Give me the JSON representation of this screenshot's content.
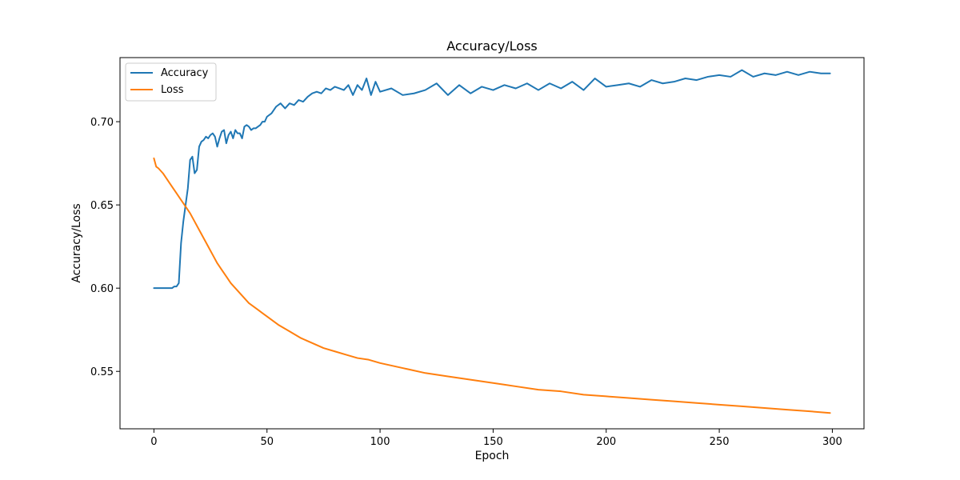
{
  "chart_data": {
    "type": "line",
    "title": "Accuracy/Loss",
    "xlabel": "Epoch",
    "ylabel": "Accuracy/Loss",
    "xlim": [
      -15,
      314
    ],
    "ylim": [
      0.5155,
      0.7385
    ],
    "xticks": [
      0,
      50,
      100,
      150,
      200,
      250,
      300
    ],
    "yticks": [
      0.55,
      0.6,
      0.65,
      0.7
    ],
    "ytick_labels": [
      "0.55",
      "0.60",
      "0.65",
      "0.70"
    ],
    "grid": false,
    "legend_position": "upper-left",
    "series": [
      {
        "name": "Accuracy",
        "color": "#1f77b4",
        "x": [
          0,
          2,
          4,
          6,
          8,
          9,
          10,
          11,
          12,
          13,
          14,
          15,
          16,
          17,
          18,
          19,
          20,
          21,
          22,
          23,
          24,
          25,
          26,
          27,
          28,
          29,
          30,
          31,
          32,
          33,
          34,
          35,
          36,
          37,
          38,
          39,
          40,
          41,
          42,
          43,
          44,
          45,
          46,
          47,
          48,
          49,
          50,
          52,
          54,
          56,
          58,
          60,
          62,
          64,
          66,
          68,
          70,
          72,
          74,
          76,
          78,
          80,
          82,
          84,
          86,
          88,
          90,
          92,
          94,
          96,
          98,
          100,
          105,
          110,
          115,
          120,
          125,
          130,
          135,
          140,
          145,
          150,
          155,
          160,
          165,
          170,
          175,
          180,
          185,
          190,
          195,
          200,
          205,
          210,
          215,
          220,
          225,
          230,
          235,
          240,
          245,
          250,
          255,
          260,
          265,
          270,
          275,
          280,
          285,
          290,
          295,
          299
        ],
        "values": [
          0.6,
          0.6,
          0.6,
          0.6,
          0.6,
          0.601,
          0.601,
          0.603,
          0.627,
          0.64,
          0.65,
          0.66,
          0.677,
          0.679,
          0.669,
          0.671,
          0.685,
          0.688,
          0.689,
          0.691,
          0.69,
          0.692,
          0.693,
          0.691,
          0.685,
          0.69,
          0.694,
          0.695,
          0.687,
          0.692,
          0.694,
          0.69,
          0.695,
          0.693,
          0.693,
          0.69,
          0.697,
          0.698,
          0.697,
          0.695,
          0.696,
          0.696,
          0.697,
          0.698,
          0.7,
          0.7,
          0.703,
          0.705,
          0.709,
          0.711,
          0.708,
          0.711,
          0.71,
          0.713,
          0.712,
          0.715,
          0.717,
          0.718,
          0.717,
          0.72,
          0.719,
          0.721,
          0.72,
          0.719,
          0.722,
          0.716,
          0.722,
          0.719,
          0.726,
          0.716,
          0.724,
          0.718,
          0.72,
          0.716,
          0.717,
          0.719,
          0.723,
          0.716,
          0.722,
          0.717,
          0.721,
          0.719,
          0.722,
          0.72,
          0.723,
          0.719,
          0.723,
          0.72,
          0.724,
          0.719,
          0.726,
          0.721,
          0.722,
          0.723,
          0.721,
          0.725,
          0.723,
          0.724,
          0.726,
          0.725,
          0.727,
          0.728,
          0.727,
          0.731,
          0.727,
          0.729,
          0.728,
          0.73,
          0.728,
          0.73,
          0.729,
          0.729
        ]
      },
      {
        "name": "Loss",
        "color": "#ff7f0e",
        "x": [
          0,
          1,
          2,
          4,
          6,
          8,
          10,
          12,
          14,
          16,
          18,
          20,
          22,
          24,
          26,
          28,
          30,
          32,
          34,
          36,
          38,
          40,
          42,
          44,
          46,
          48,
          50,
          55,
          60,
          65,
          70,
          75,
          80,
          85,
          90,
          95,
          100,
          110,
          120,
          130,
          140,
          150,
          160,
          170,
          180,
          190,
          200,
          210,
          220,
          230,
          240,
          250,
          260,
          270,
          280,
          290,
          299
        ],
        "values": [
          0.678,
          0.673,
          0.672,
          0.669,
          0.665,
          0.661,
          0.657,
          0.653,
          0.649,
          0.645,
          0.64,
          0.635,
          0.63,
          0.625,
          0.62,
          0.615,
          0.611,
          0.607,
          0.603,
          0.6,
          0.597,
          0.594,
          0.591,
          0.589,
          0.587,
          0.585,
          0.583,
          0.578,
          0.574,
          0.57,
          0.567,
          0.564,
          0.562,
          0.56,
          0.558,
          0.557,
          0.555,
          0.552,
          0.549,
          0.547,
          0.545,
          0.543,
          0.541,
          0.539,
          0.538,
          0.536,
          0.535,
          0.534,
          0.533,
          0.532,
          0.531,
          0.53,
          0.529,
          0.528,
          0.527,
          0.526,
          0.525
        ]
      }
    ]
  }
}
